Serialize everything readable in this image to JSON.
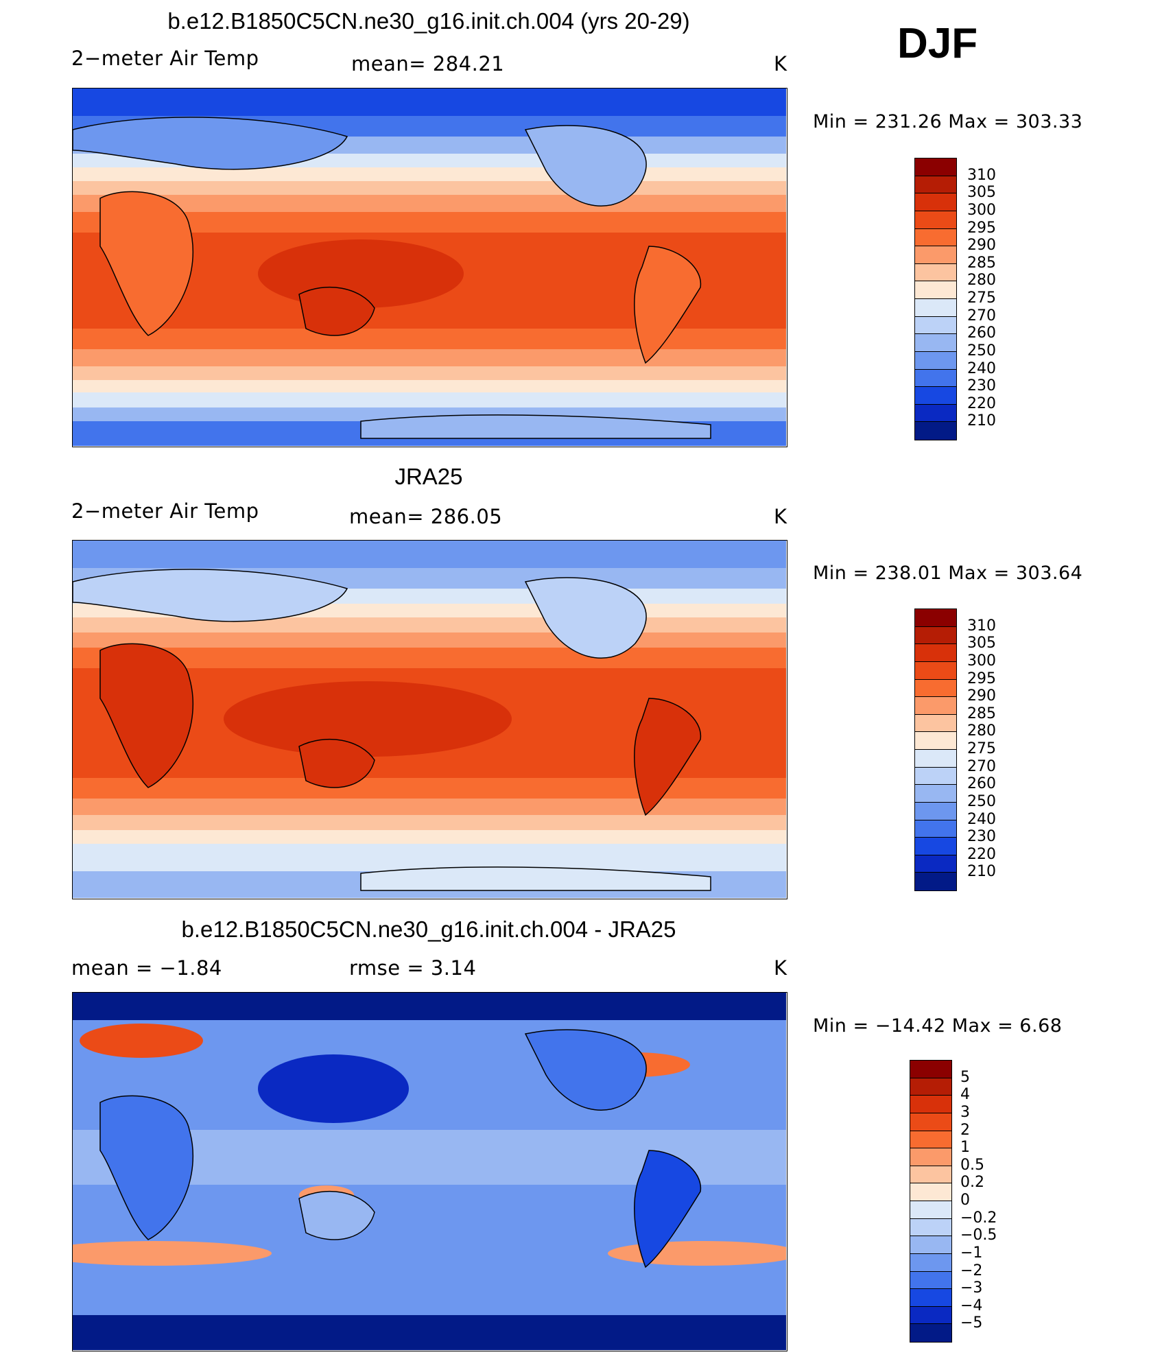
{
  "season": "DJF",
  "chart_data": [
    {
      "type": "heatmap",
      "title": "b.e12.B1850C5CN.ne30_g16.init.ch.004 (yrs 20-29)",
      "left_label": "2−meter Air Temp",
      "center_label": "mean=  284.21",
      "units": "K",
      "min_max": "Min  =  231.26  Max  =  303.33",
      "min": 231.26,
      "max": 303.33,
      "mean": 284.21,
      "colorbar_levels": [
        "310",
        "305",
        "300",
        "295",
        "290",
        "285",
        "280",
        "275",
        "270",
        "260",
        "250",
        "240",
        "230",
        "220",
        "210"
      ],
      "colorbar_colors": [
        "#8b0000",
        "#b51d05",
        "#d8310a",
        "#eb4b17",
        "#f86c30",
        "#fb9a6a",
        "#fcc4a0",
        "#fde8d4",
        "#dbe8f8",
        "#bcd2f7",
        "#98b7f2",
        "#6d97ef",
        "#4274ec",
        "#1748e2",
        "#0a29c2",
        "#021a87"
      ]
    },
    {
      "type": "heatmap",
      "title": "JRA25",
      "left_label": "2−meter Air Temp",
      "center_label": "mean=  286.05",
      "units": "K",
      "min_max": "Min  =  238.01  Max  =  303.64",
      "min": 238.01,
      "max": 303.64,
      "mean": 286.05,
      "colorbar_levels": [
        "310",
        "305",
        "300",
        "295",
        "290",
        "285",
        "280",
        "275",
        "270",
        "260",
        "250",
        "240",
        "230",
        "220",
        "210"
      ],
      "colorbar_colors": [
        "#8b0000",
        "#b51d05",
        "#d8310a",
        "#eb4b17",
        "#f86c30",
        "#fb9a6a",
        "#fcc4a0",
        "#fde8d4",
        "#dbe8f8",
        "#bcd2f7",
        "#98b7f2",
        "#6d97ef",
        "#4274ec",
        "#1748e2",
        "#0a29c2",
        "#021a87"
      ]
    },
    {
      "type": "heatmap",
      "title": "b.e12.B1850C5CN.ne30_g16.init.ch.004 - JRA25",
      "left_label": "mean  =     −1.84",
      "center_label": "rmse  =      3.14",
      "units": "K",
      "min_max": "Min  =  −14.42  Max  =     6.68",
      "min": -14.42,
      "max": 6.68,
      "mean": -1.84,
      "rmse": 3.14,
      "colorbar_levels": [
        "5",
        "4",
        "3",
        "2",
        "1",
        "0.5",
        "0.2",
        "0",
        "−0.2",
        "−0.5",
        "−1",
        "−2",
        "−3",
        "−4",
        "−5"
      ],
      "colorbar_colors": [
        "#8b0000",
        "#b51d05",
        "#d8310a",
        "#eb4b17",
        "#f86c30",
        "#fb9a6a",
        "#fcc4a0",
        "#fde8d4",
        "#dbe8f8",
        "#bcd2f7",
        "#98b7f2",
        "#6d97ef",
        "#4274ec",
        "#1748e2",
        "#0a29c2",
        "#021a87"
      ]
    }
  ]
}
